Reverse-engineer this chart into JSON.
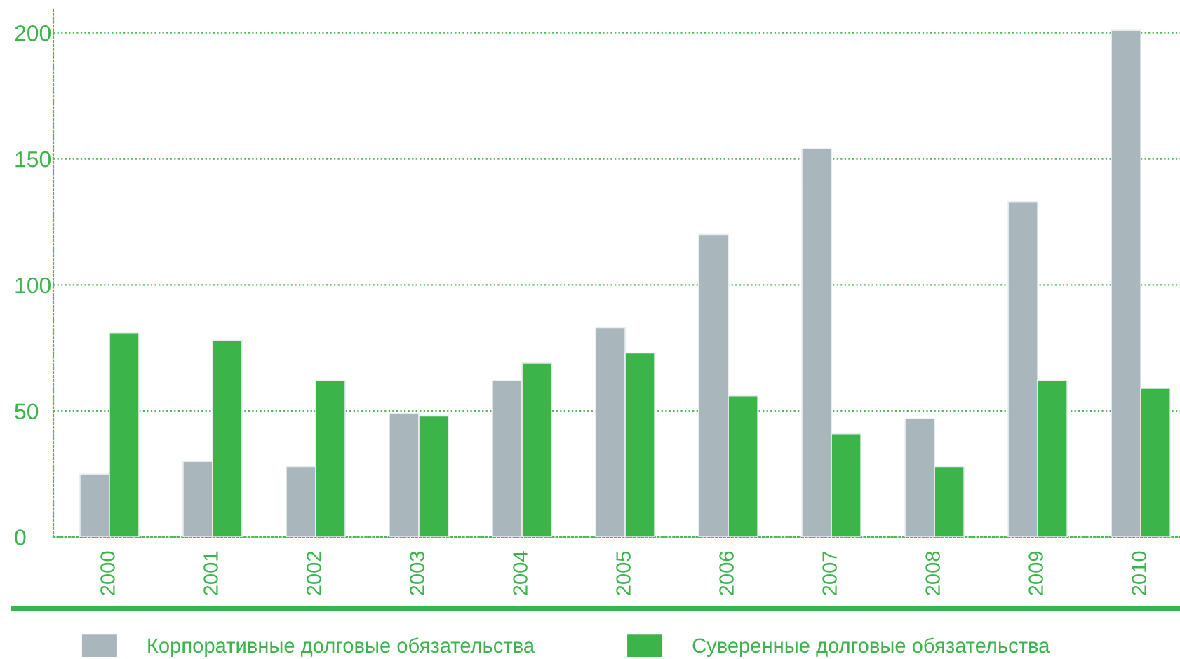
{
  "chart_data": {
    "type": "bar",
    "categories": [
      "2000",
      "2001",
      "2002",
      "2003",
      "2004",
      "2005",
      "2006",
      "2007",
      "2008",
      "2009",
      "2010"
    ],
    "series": [
      {
        "name": "Корпоративные долговые обязательства",
        "color": "#a9b6bc",
        "values": [
          25,
          30,
          28,
          49,
          62,
          83,
          120,
          154,
          47,
          133,
          201
        ]
      },
      {
        "name": "Суверенные долговые обязательства",
        "color": "#3bb54a",
        "values": [
          81,
          78,
          62,
          48,
          69,
          73,
          56,
          41,
          28,
          62,
          59
        ]
      }
    ],
    "ylim": [
      0,
      210
    ],
    "yticks": [
      0,
      50,
      100,
      150,
      200
    ],
    "grid": "y",
    "legend": "bottom"
  }
}
